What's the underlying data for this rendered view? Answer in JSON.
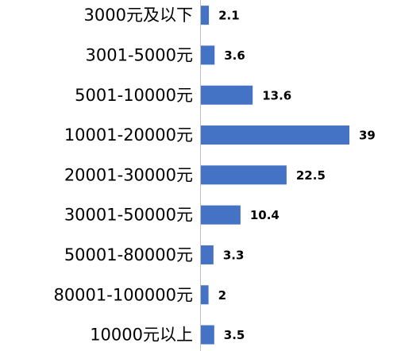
{
  "chart_data": {
    "type": "bar",
    "orientation": "horizontal",
    "categories": [
      "3000元及以下",
      "3001-5000元",
      "5001-10000元",
      "10001-20000元",
      "20001-30000元",
      "30001-50000元",
      "50001-80000元",
      "80001-100000元",
      "10000元以上"
    ],
    "values": [
      2.1,
      3.6,
      13.6,
      39,
      22.5,
      10.4,
      3.3,
      2,
      3.5
    ],
    "color": "#4472c4"
  }
}
